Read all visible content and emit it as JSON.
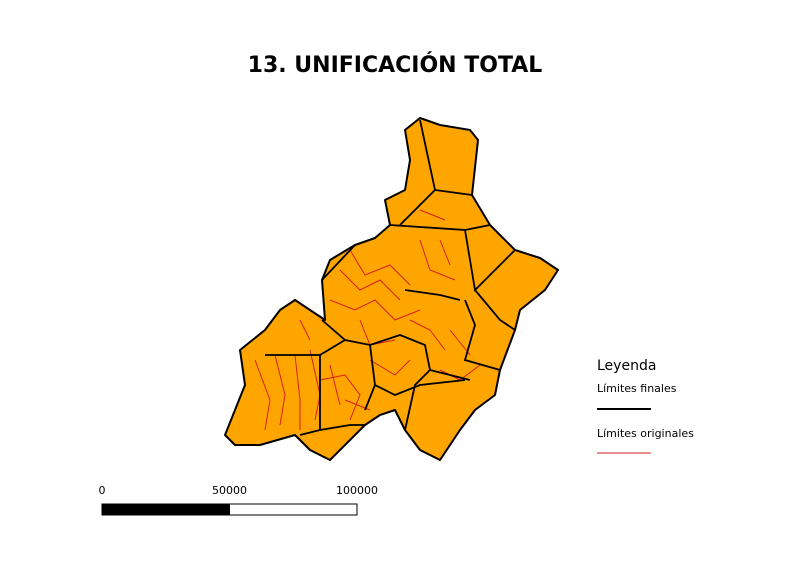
{
  "title": "13. UNIFICACIÓN TOTAL",
  "legend": {
    "title": "Leyenda",
    "items": [
      {
        "label": "Límites finales",
        "color": "#000000"
      },
      {
        "label": "Límites originales",
        "color": "#d62020"
      }
    ]
  },
  "scale_bar": {
    "labels": [
      0,
      50000,
      100000
    ]
  }
}
